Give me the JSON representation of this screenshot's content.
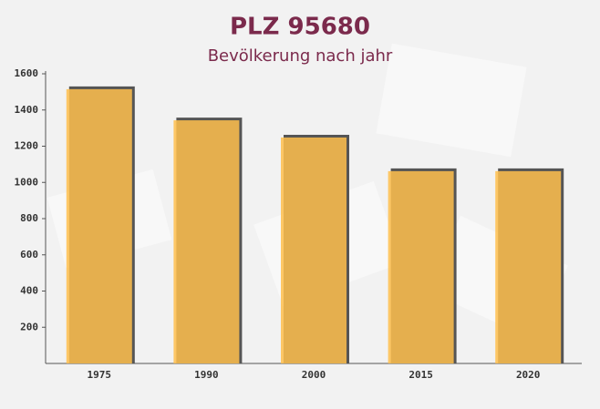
{
  "chart_data": {
    "type": "bar",
    "title": "PLZ 95680",
    "subtitle": "Bevölkerung nach jahr",
    "categories": [
      "1975",
      "1990",
      "2000",
      "2015",
      "2020"
    ],
    "values": [
      1515,
      1343,
      1248,
      1062,
      1062
    ],
    "color": "#ffc04d",
    "ylim": [
      0,
      1600
    ],
    "yticks": [
      200,
      400,
      600,
      800,
      1000,
      1200,
      1400,
      1600
    ]
  }
}
